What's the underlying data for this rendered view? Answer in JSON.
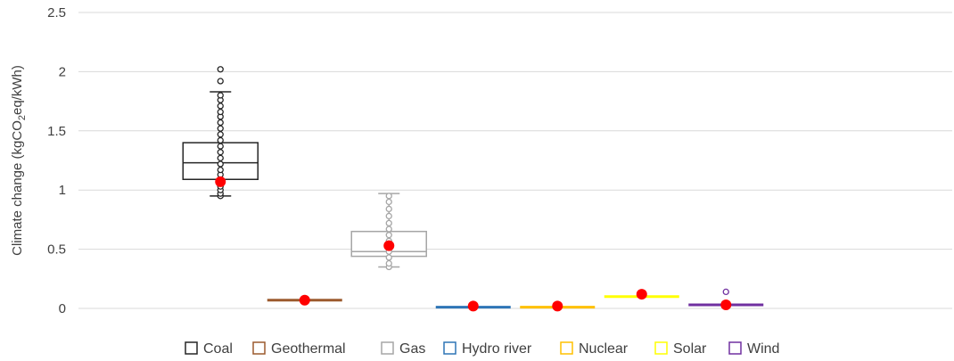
{
  "chart_data": {
    "type": "box",
    "ylabel_prefix": "Climate change (kgCO",
    "ylabel_sub": "2",
    "ylabel_suffix": "eq/kWh)",
    "ylim": [
      0,
      2.5
    ],
    "yticks": [
      0,
      0.5,
      1,
      1.5,
      2,
      2.5
    ],
    "ytick_labels": [
      "0",
      "0.5",
      "1",
      "1.5",
      "2",
      "2.5"
    ],
    "grid": true,
    "legend_position": "bottom",
    "categories": [
      "Coal",
      "Geothermal",
      "Gas",
      "Hydro river",
      "Nuclear",
      "Solar",
      "Wind"
    ],
    "series": [
      {
        "name": "Coal",
        "color": "#262626",
        "min": 0.95,
        "q1": 1.09,
        "median": 1.23,
        "q3": 1.4,
        "max": 1.83,
        "mean": 1.07,
        "points": [
          0.95,
          0.97,
          1.0,
          1.03,
          1.06,
          1.09,
          1.13,
          1.17,
          1.22,
          1.27,
          1.32,
          1.37,
          1.42,
          1.47,
          1.52,
          1.57,
          1.62,
          1.66,
          1.71,
          1.76,
          1.8,
          1.92,
          2.02
        ],
        "outliers": [
          1.92,
          2.02
        ]
      },
      {
        "name": "Geothermal",
        "color": "#9c5a2e",
        "min": 0.07,
        "q1": 0.07,
        "median": 0.07,
        "q3": 0.07,
        "max": 0.07,
        "mean": 0.07,
        "points": [],
        "outliers": []
      },
      {
        "name": "Gas",
        "color": "#a6a6a6",
        "min": 0.35,
        "q1": 0.44,
        "median": 0.48,
        "q3": 0.65,
        "max": 0.97,
        "mean": 0.53,
        "points": [
          0.35,
          0.38,
          0.43,
          0.48,
          0.52,
          0.57,
          0.62,
          0.67,
          0.72,
          0.78,
          0.84,
          0.9,
          0.95
        ],
        "outliers": []
      },
      {
        "name": "Hydro river",
        "color": "#2e75b6",
        "min": 0.01,
        "q1": 0.01,
        "median": 0.01,
        "q3": 0.01,
        "max": 0.01,
        "mean": 0.02,
        "points": [],
        "outliers": []
      },
      {
        "name": "Nuclear",
        "color": "#ffc000",
        "min": 0.01,
        "q1": 0.01,
        "median": 0.01,
        "q3": 0.01,
        "max": 0.01,
        "mean": 0.02,
        "points": [],
        "outliers": []
      },
      {
        "name": "Solar",
        "color": "#ffff00",
        "min": 0.1,
        "q1": 0.1,
        "median": 0.1,
        "q3": 0.1,
        "max": 0.1,
        "mean": 0.12,
        "points": [],
        "outliers": []
      },
      {
        "name": "Wind",
        "color": "#7030a0",
        "min": 0.02,
        "q1": 0.025,
        "median": 0.03,
        "q3": 0.03,
        "max": 0.035,
        "mean": 0.03,
        "points": [
          0.14
        ],
        "outliers": [
          0.14
        ]
      }
    ],
    "mean_marker_color": "#ff0000"
  }
}
